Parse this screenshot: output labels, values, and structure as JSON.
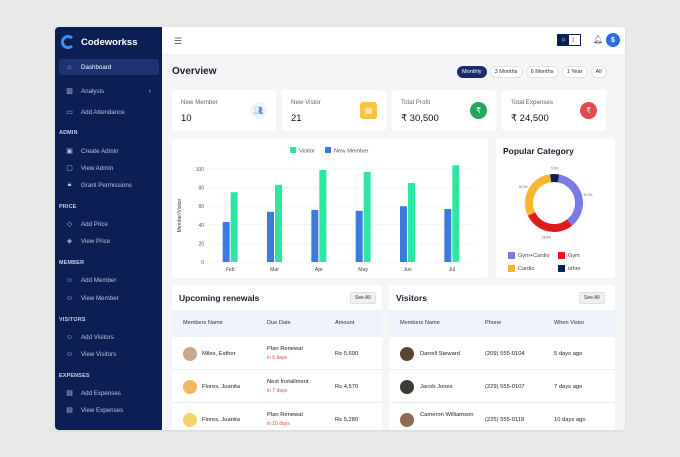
{
  "brand": {
    "name": "Codeworkss"
  },
  "sidebar": {
    "items": [
      {
        "label": "Dashboard",
        "icon": "home-icon",
        "active": true
      },
      {
        "label": "Analysis",
        "icon": "analysis-icon",
        "chevron": true
      },
      {
        "label": "Add Attendance",
        "icon": "calendar-icon"
      }
    ],
    "sections": [
      {
        "label": "ADMIN",
        "items": [
          {
            "label": "Create Admin",
            "icon": "admin-add-icon"
          },
          {
            "label": "View Admin",
            "icon": "admin-view-icon"
          },
          {
            "label": "Grant Permissions",
            "icon": "lock-icon"
          }
        ]
      },
      {
        "label": "PRICE",
        "items": [
          {
            "label": "Add Price",
            "icon": "price-add-icon"
          },
          {
            "label": "View Price",
            "icon": "layers-icon"
          }
        ]
      },
      {
        "label": "MEMBER",
        "items": [
          {
            "label": "Add Member",
            "icon": "user-add-icon"
          },
          {
            "label": "View Member",
            "icon": "user-view-icon"
          }
        ]
      },
      {
        "label": "VISITORS",
        "items": [
          {
            "label": "Add Visitors",
            "icon": "visitor-add-icon"
          },
          {
            "label": "View Visitors",
            "icon": "visitor-view-icon"
          }
        ]
      },
      {
        "label": "EXPENSES",
        "items": [
          {
            "label": "Add Expenses",
            "icon": "expense-add-icon"
          },
          {
            "label": "View Expenses",
            "icon": "expense-view-icon"
          }
        ]
      }
    ]
  },
  "topbar": {
    "avatar_initial": "$"
  },
  "overview": {
    "title": "Overview",
    "periods": [
      "Monthly",
      "3 Months",
      "6 Months",
      "1 Year",
      "All"
    ],
    "active_period": "Monthly"
  },
  "stats": [
    {
      "label": "New Member",
      "value": "10",
      "icon": "people-icon",
      "color": "#e7efff",
      "glyph_color": "#6b8ee8"
    },
    {
      "label": "New Vistor",
      "value": "21",
      "icon": "contact-card-icon",
      "color": "#f5c542",
      "glyph_color": "#ffffff"
    },
    {
      "label": "Total Profit",
      "value": "₹ 30,500",
      "icon": "rupee-profit-icon",
      "color": "#1fa85a",
      "glyph_color": "#ffffff"
    },
    {
      "label": "Total Expenses",
      "value": "₹ 24,500",
      "icon": "rupee-expense-icon",
      "color": "#e5484d",
      "glyph_color": "#ffffff"
    }
  ],
  "chart_data": [
    {
      "type": "bar",
      "categories": [
        "Feb",
        "Mar",
        "Apr",
        "May",
        "Jun",
        "Jul"
      ],
      "series": [
        {
          "name": "Visitor",
          "color": "#2ee6a0",
          "values": [
            75,
            83,
            99,
            97,
            85,
            104
          ]
        },
        {
          "name": "New Member",
          "color": "#3a7be0",
          "values": [
            43,
            54,
            56,
            55,
            60,
            57
          ]
        }
      ],
      "ylabel": "Member/Visitor",
      "ylim": [
        0,
        100
      ],
      "yticks": [
        0,
        20,
        40,
        60,
        80,
        100
      ],
      "grid": true,
      "legend": "top-center"
    },
    {
      "type": "pie",
      "title": "Popular Category",
      "categories": [
        "Gym+Cardio",
        "Gym",
        "Cardio",
        "other"
      ],
      "values": [
        36.3,
        28.6,
        30.0,
        5.0
      ],
      "colors": [
        "#7b7be8",
        "#e01b1b",
        "#f5b82e",
        "#0c1f52"
      ],
      "donut": true,
      "legend": "bottom"
    }
  ],
  "renewals": {
    "title": "Upcoming renewals",
    "see_all": "See All",
    "columns": [
      "Members Name",
      "Due Date",
      "Amount"
    ],
    "rows": [
      {
        "name": "Miles, Esther",
        "due": "Plan Renewal",
        "due_sub": "in 5 days",
        "amount": "Rs 5,690",
        "avatar_color": "#c9a98a"
      },
      {
        "name": "Flores, Juanita",
        "due": "Next Installment",
        "due_sub": "in 7 days",
        "amount": "Rs 4,570",
        "avatar_color": "#f2b75b"
      },
      {
        "name": "Flores, Juanita",
        "due": "Plan Renewal",
        "due_sub": "in 10 days",
        "amount": "Rs 5,280",
        "avatar_color": "#f5d36b"
      }
    ]
  },
  "visitors": {
    "title": "Visitors",
    "see_all": "See All",
    "columns": [
      "Members Name",
      "Phone",
      "When Vistor"
    ],
    "rows": [
      {
        "name": "Darrell Steward",
        "phone": "(209) 555-0104",
        "when": "5 days ago",
        "avatar_color": "#5a4632"
      },
      {
        "name": "Jacob Jones",
        "phone": "(229) 555-0107",
        "when": "7 days ago",
        "avatar_color": "#3d3a36"
      },
      {
        "name": "Cameron Williamson",
        "phone": "(225) 555-0118",
        "when": "10 days ago",
        "avatar_color": "#8f6b52"
      }
    ]
  }
}
